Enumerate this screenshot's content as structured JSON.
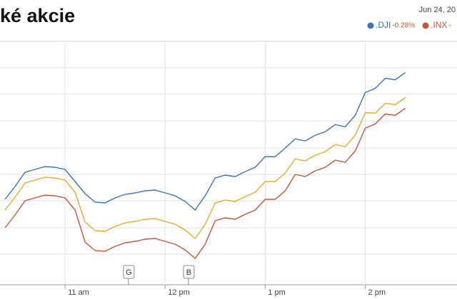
{
  "chart_data": {
    "type": "line",
    "title": "ké akcie",
    "date": "Jun 24, 20",
    "xlim": [
      621,
      895
    ],
    "ylim": [
      0,
      340
    ],
    "xticks": [
      {
        "value": 660,
        "label": "11 am"
      },
      {
        "value": 720,
        "label": "12 pm"
      },
      {
        "value": 780,
        "label": "1 pm"
      },
      {
        "value": 840,
        "label": "2 pm"
      }
    ],
    "x": [
      624,
      630,
      636,
      642,
      648,
      654,
      660,
      666,
      672,
      678,
      684,
      690,
      696,
      702,
      708,
      714,
      720,
      726,
      732,
      738,
      744,
      750,
      756,
      762,
      768,
      774,
      780,
      786,
      792,
      798,
      804,
      810,
      816,
      822,
      828,
      834,
      840,
      846,
      852,
      858,
      864
    ],
    "series": [
      {
        "name": ".DJI",
        "change": "-0.28%",
        "color": "#3d74b8",
        "values": [
          120,
          138,
          158,
          162,
          166,
          165,
          162,
          145,
          128,
          116,
          115,
          122,
          127,
          129,
          132,
          133,
          129,
          125,
          117,
          105,
          125,
          150,
          154,
          152,
          159,
          165,
          180,
          180,
          192,
          205,
          202,
          210,
          215,
          225,
          222,
          238,
          270,
          276,
          290,
          288,
          298
        ]
      },
      {
        "name": ".INX",
        "change": "-",
        "color": "#c8553d",
        "values": [
          80,
          98,
          118,
          122,
          126,
          125,
          122,
          105,
          60,
          48,
          47,
          54,
          59,
          61,
          64,
          65,
          61,
          57,
          49,
          37,
          57,
          90,
          94,
          92,
          99,
          105,
          120,
          120,
          132,
          155,
          152,
          160,
          165,
          175,
          172,
          188,
          220,
          226,
          240,
          238,
          248
        ]
      },
      {
        "color": "#e8ac2c",
        "values": [
          105,
          123,
          143,
          147,
          151,
          150,
          147,
          130,
          88,
          76,
          75,
          82,
          87,
          89,
          92,
          93,
          89,
          85,
          77,
          65,
          85,
          115,
          119,
          117,
          124,
          130,
          145,
          145,
          157,
          177,
          174,
          182,
          187,
          197,
          194,
          210,
          242,
          241,
          255,
          253,
          263
        ]
      }
    ],
    "annotations": [
      {
        "label": "G",
        "x": 698
      },
      {
        "label": "B",
        "x": 734
      }
    ]
  }
}
